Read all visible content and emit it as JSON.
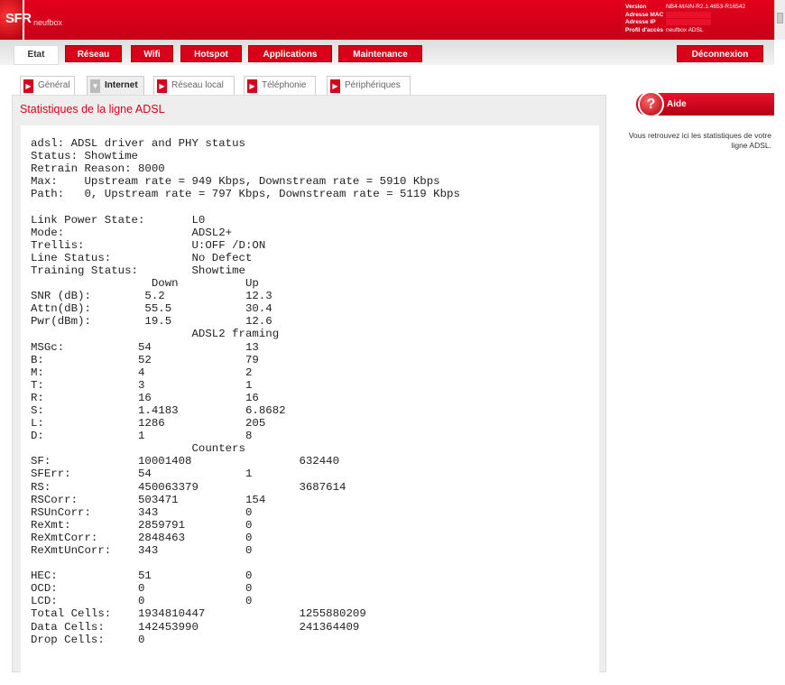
{
  "header": {
    "logo": "SFR",
    "brand": "neufbox",
    "info": [
      {
        "label": "Version",
        "value": "NB4-MAIN-R2.1.4653-R16542"
      },
      {
        "label": "Adresse MAC",
        "value": ""
      },
      {
        "label": "Adresse IP",
        "value": ""
      },
      {
        "label": "Profil d'accès",
        "value": "neufbox ADSL"
      }
    ]
  },
  "nav": {
    "tabs": [
      "Etat",
      "Réseau",
      "Wifi",
      "Hotspot",
      "Applications",
      "Maintenance"
    ],
    "logout": "Déconnexion"
  },
  "subtabs": [
    "Général",
    "Internet",
    "Réseau local",
    "Téléphonie",
    "Périphériques"
  ],
  "panel": {
    "title": "Statistiques de la ligne ADSL",
    "lines": [
      "adsl: ADSL driver and PHY status",
      "Status: Showtime",
      "Retrain Reason: 8000",
      "Max:\tUpstream rate = 949 Kbps, Downstream rate = 5910 Kbps",
      "Path:\t0, Upstream rate = 797 Kbps, Downstream rate = 5119 Kbps",
      "",
      "Link Power State:\tL0",
      "Mode:\t\t\tADSL2+",
      "Trellis:\t\tU:OFF /D:ON",
      "Line Status:\t\tNo Defect",
      "Training Status:\tShowtime",
      "                  Down          Up",
      "SNR (dB):        5.2            12.3",
      "Attn(dB):        55.5           30.4",
      "Pwr(dBm):        19.5           12.6",
      "\t\t\tADSL2 framing",
      "MSGc:\t\t54\t\t13",
      "B:\t\t52\t\t79",
      "M:\t\t4\t\t2",
      "T:\t\t3\t\t1",
      "R:\t\t16\t\t16",
      "S:\t\t1.4183\t\t6.8682",
      "L:\t\t1286\t\t205",
      "D:\t\t1\t\t8",
      "\t\t\tCounters",
      "SF:\t\t10001408\t\t632440",
      "SFErr:\t\t54\t\t1",
      "RS:\t\t450063379\t\t3687614",
      "RSCorr:\t\t503471\t\t154",
      "RSUnCorr:\t343\t\t0",
      "ReXmt:\t\t2859791\t\t0",
      "ReXmtCorr:\t2848463\t\t0",
      "ReXmtUnCorr:\t343\t\t0",
      "",
      "HEC:\t\t51\t\t0",
      "OCD:\t\t0\t\t0",
      "LCD:\t\t0\t\t0",
      "Total Cells:\t1934810447\t\t1255880209",
      "Data Cells:\t142453990\t\t241364409",
      "Drop Cells:\t0"
    ]
  },
  "help": {
    "button": "Aide",
    "icon": "?",
    "text": "Vous retrouvez ici les statistiques de votre ligne ADSL."
  },
  "colors": {
    "brand": "#d8001a"
  }
}
